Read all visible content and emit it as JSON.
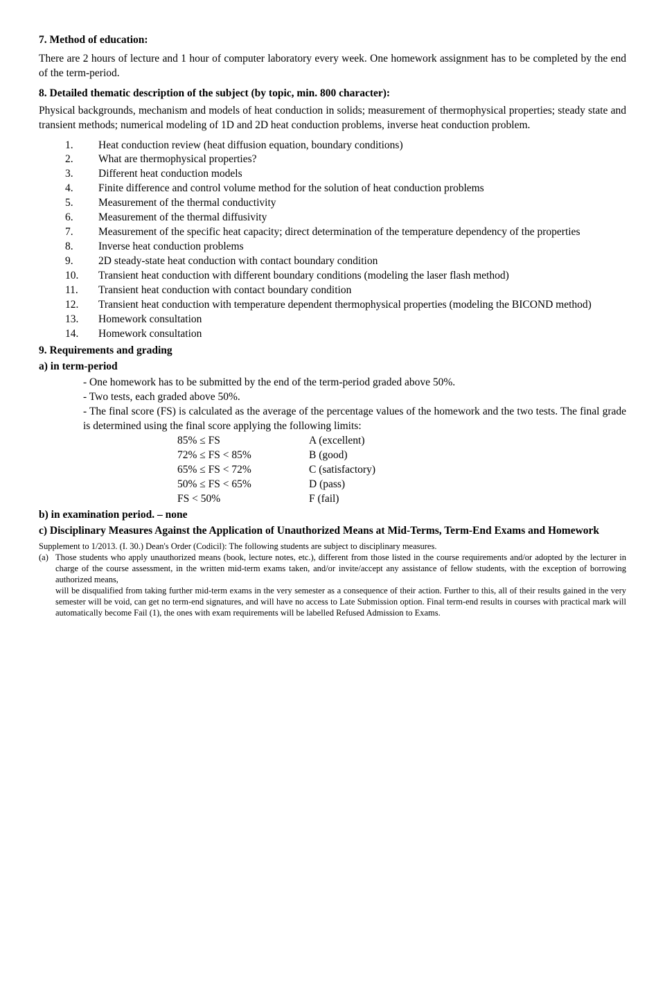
{
  "s7": {
    "heading": "7. Method of education:",
    "body": "There are 2 hours of lecture and 1 hour of computer laboratory every week. One homework assignment has to be completed by the end of the term-period."
  },
  "s8": {
    "heading": "8. Detailed thematic description of the subject (by topic, min. 800 character):",
    "intro": "Physical backgrounds, mechanism and models of heat conduction in solids; measurement of thermophysical properties; steady state and transient methods; numerical modeling of 1D and 2D heat conduction problems, inverse heat conduction problem.",
    "items": [
      "Heat conduction review (heat diffusion equation, boundary conditions)",
      "What are thermophysical properties?",
      "Different heat conduction models",
      "Finite difference and control volume method for the solution of heat conduction problems",
      "Measurement of the thermal conductivity",
      "Measurement of the thermal diffusivity",
      "Measurement of the specific heat capacity; direct determination of the temperature dependency of the properties",
      "Inverse heat conduction problems",
      "2D steady-state heat conduction with contact boundary condition",
      "Transient heat conduction with different boundary conditions (modeling the laser flash method)",
      "Transient heat conduction with contact boundary condition",
      "Transient heat conduction with temperature dependent thermophysical properties (modeling the BICOND method)",
      "Homework consultation",
      "Homework consultation"
    ]
  },
  "s9": {
    "heading": "9. Requirements and grading",
    "a_heading": "a) in term-period",
    "a_lines": [
      "- One homework has to be submitted by the end of the term-period graded above 50%.",
      "- Two tests, each graded above 50%.",
      "- The final score (FS) is calculated as the average of the percentage values of the homework and the two tests. The final grade is determined using the final score applying the following limits:"
    ],
    "grades": [
      {
        "range": "85% ≤ FS",
        "label": "A (excellent)"
      },
      {
        "range": "72% ≤ FS < 85%",
        "label": "B (good)"
      },
      {
        "range": "65% ≤ FS < 72%",
        "label": "C (satisfactory)"
      },
      {
        "range": "50% ≤ FS < 65%",
        "label": "D (pass)"
      },
      {
        "range": "FS < 50%",
        "label": "F (fail)"
      }
    ],
    "b_text": "b) in examination period. – none",
    "c_text": "c) Disciplinary Measures Against the Application of Unauthorized Means at Mid-Terms, Term-End Exams and Homework"
  },
  "suppl": {
    "line1": "Supplement to 1/2013. (I. 30.) Dean's Order (Codicil): The following students are subject to disciplinary measures.",
    "a_mark": "(a)",
    "a_para1": "Those students who apply unauthorized means (book, lecture notes, etc.), different from those listed in the course requirements and/or adopted by the lecturer in charge of the course assessment, in the written mid-term exams taken, and/or invite/accept any assistance of fellow students, with the exception of borrowing authorized means,",
    "a_para2": "will be disqualified from taking further mid-term exams in the very semester as a consequence of their action. Further to this, all of their results gained in the very semester will be void, can get no term-end signatures, and will have no access to Late Submission option. Final term-end results in courses with practical mark will automatically become Fail (1), the ones with exam requirements will be labelled Refused Admission to Exams."
  }
}
